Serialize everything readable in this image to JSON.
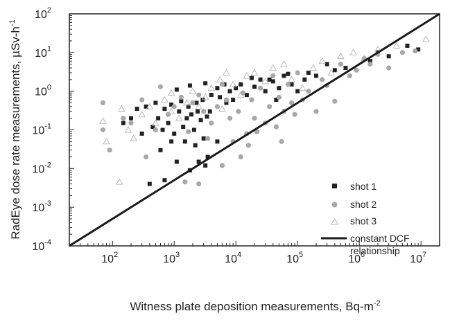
{
  "chart_data": {
    "type": "scatter",
    "xlabel": "Witness plate deposition measurements, Bq-m",
    "xlabel_sup": "-2",
    "ylabel": "RadEye dose rate measurements, µSv-h",
    "ylabel_sup": "-1",
    "x_scale": "log",
    "y_scale": "log",
    "xlim": [
      20,
      20000000
    ],
    "ylim": [
      0.0001,
      100
    ],
    "x_ticks": [
      {
        "base": "10",
        "exp": "2",
        "value": 100
      },
      {
        "base": "10",
        "exp": "3",
        "value": 1000
      },
      {
        "base": "10",
        "exp": "4",
        "value": 10000
      },
      {
        "base": "10",
        "exp": "5",
        "value": 100000
      },
      {
        "base": "10",
        "exp": "6",
        "value": 1000000
      },
      {
        "base": "10",
        "exp": "7",
        "value": 10000000
      }
    ],
    "y_ticks": [
      {
        "base": "10",
        "exp": "-4",
        "value": 0.0001
      },
      {
        "base": "10",
        "exp": "-3",
        "value": 0.001
      },
      {
        "base": "10",
        "exp": "-2",
        "value": 0.01
      },
      {
        "base": "10",
        "exp": "-1",
        "value": 0.1
      },
      {
        "base": "10",
        "exp": "0",
        "value": 1
      },
      {
        "base": "10",
        "exp": "1",
        "value": 10
      },
      {
        "base": "10",
        "exp": "2",
        "value": 100
      }
    ],
    "grid": false,
    "legend_position": "bottom-right",
    "series": [
      {
        "name": "shot 1",
        "marker": "square",
        "color": "#222222",
        "points": [
          [
            400,
            0.004
          ],
          [
            700,
            0.005
          ],
          [
            1100,
            0.015
          ],
          [
            1800,
            0.009
          ],
          [
            2500,
            0.015
          ],
          [
            3200,
            0.012
          ],
          [
            600,
            0.03
          ],
          [
            900,
            0.05
          ],
          [
            1500,
            0.05
          ],
          [
            2200,
            0.04
          ],
          [
            3500,
            0.02
          ],
          [
            5000,
            0.05
          ],
          [
            300,
            0.08
          ],
          [
            450,
            0.12
          ],
          [
            550,
            0.2
          ],
          [
            650,
            0.1
          ],
          [
            800,
            0.15
          ],
          [
            1000,
            0.08
          ],
          [
            1200,
            0.3
          ],
          [
            1400,
            0.12
          ],
          [
            1600,
            0.2
          ],
          [
            1900,
            0.25
          ],
          [
            2100,
            0.1
          ],
          [
            2400,
            0.3
          ],
          [
            2700,
            0.18
          ],
          [
            3000,
            0.06
          ],
          [
            3400,
            0.22
          ],
          [
            3800,
            0.3
          ],
          [
            200,
            0.2
          ],
          [
            250,
            0.35
          ],
          [
            350,
            0.4
          ],
          [
            500,
            0.5
          ],
          [
            700,
            0.35
          ],
          [
            900,
            0.45
          ],
          [
            1300,
            0.55
          ],
          [
            1700,
            0.4
          ],
          [
            2300,
            0.5
          ],
          [
            2900,
            0.6
          ],
          [
            4000,
            0.8
          ],
          [
            5500,
            0.7
          ],
          [
            7000,
            0.5
          ],
          [
            9000,
            0.6
          ],
          [
            5000,
            1.2
          ],
          [
            8000,
            1.0
          ],
          [
            12000,
            1.5
          ],
          [
            15000,
            0.8
          ],
          [
            20000,
            1.3
          ],
          [
            25000,
            2.0
          ],
          [
            30000,
            1.0
          ],
          [
            40000,
            1.8
          ],
          [
            50000,
            1.2
          ],
          [
            60000,
            2.5
          ],
          [
            80000,
            1.5
          ],
          [
            100000,
            1.0
          ],
          [
            130000,
            2.0
          ],
          [
            150000,
            3.0
          ],
          [
            200000,
            2.5
          ],
          [
            300000,
            5.0
          ],
          [
            400000,
            3.5
          ],
          [
            600000,
            4.0
          ],
          [
            1500000,
            6.0
          ],
          [
            2000000,
            10.0
          ],
          [
            3000000,
            8.0
          ],
          [
            6000000,
            15.0
          ],
          [
            9000000,
            12.0
          ],
          [
            150,
            0.15
          ],
          [
            1100,
            1.1
          ],
          [
            1800,
            1.4
          ],
          [
            3200,
            1.6
          ],
          [
            6500,
            1.5
          ],
          [
            10000,
            1.2
          ],
          [
            18000,
            2.2
          ],
          [
            35000,
            2.0
          ],
          [
            45000,
            0.6
          ],
          [
            70000,
            2.8
          ]
        ]
      },
      {
        "name": "shot 2",
        "marker": "circle",
        "color": "#a8a8a8",
        "points": [
          [
            70,
            0.5
          ],
          [
            70,
            0.1
          ],
          [
            90,
            0.03
          ],
          [
            150,
            0.2
          ],
          [
            200,
            0.15
          ],
          [
            300,
            0.6
          ],
          [
            350,
            0.02
          ],
          [
            500,
            0.1
          ],
          [
            600,
            1.3
          ],
          [
            800,
            0.25
          ],
          [
            1000,
            0.4
          ],
          [
            1300,
            0.7
          ],
          [
            1700,
            0.09
          ],
          [
            2000,
            0.5
          ],
          [
            2500,
            0.8
          ],
          [
            3000,
            0.3
          ],
          [
            4000,
            0.15
          ],
          [
            5000,
            0.4
          ],
          [
            6000,
            1.5
          ],
          [
            7000,
            0.6
          ],
          [
            8000,
            0.2
          ],
          [
            9000,
            0.05
          ],
          [
            11000,
            0.3
          ],
          [
            13000,
            0.9
          ],
          [
            15000,
            0.08
          ],
          [
            18000,
            0.6
          ],
          [
            20000,
            0.2
          ],
          [
            25000,
            1.2
          ],
          [
            30000,
            0.15
          ],
          [
            35000,
            0.4
          ],
          [
            40000,
            2.5
          ],
          [
            45000,
            0.12
          ],
          [
            50000,
            0.7
          ],
          [
            60000,
            0.3
          ],
          [
            70000,
            1.5
          ],
          [
            80000,
            0.5
          ],
          [
            90000,
            0.25
          ],
          [
            100000,
            3.0
          ],
          [
            120000,
            0.6
          ],
          [
            150000,
            1.0
          ],
          [
            200000,
            0.3
          ],
          [
            250000,
            2.0
          ],
          [
            300000,
            1.4
          ],
          [
            400000,
            0.55
          ],
          [
            500000,
            5.0
          ],
          [
            700000,
            2.5
          ],
          [
            900000,
            3.5
          ],
          [
            1200000,
            7.0
          ],
          [
            1500000,
            5.0
          ],
          [
            2000000,
            9.0
          ],
          [
            3000000,
            4.0
          ],
          [
            5000000,
            10.0
          ],
          [
            8000000,
            11.0
          ],
          [
            1500,
            0.0045
          ],
          [
            2500,
            0.004
          ],
          [
            12000,
            0.02
          ],
          [
            22000,
            0.09
          ],
          [
            55000,
            0.05
          ],
          [
            6000,
            0.012
          ],
          [
            3500,
            0.06
          ],
          [
            16000,
            0.04
          ]
        ]
      },
      {
        "name": "shot 3",
        "marker": "triangle",
        "color": "#b4b4b4",
        "points": [
          [
            70,
            0.17
          ],
          [
            80,
            0.05
          ],
          [
            130,
            0.0045
          ],
          [
            140,
            0.35
          ],
          [
            180,
            0.1
          ],
          [
            220,
            0.06
          ],
          [
            300,
            0.25
          ],
          [
            400,
            0.4
          ],
          [
            500,
            0.15
          ],
          [
            700,
            0.6
          ],
          [
            900,
            0.3
          ],
          [
            1200,
            0.2
          ],
          [
            1600,
            0.5
          ],
          [
            2000,
            1.0
          ],
          [
            2500,
            0.4
          ],
          [
            3200,
            0.7
          ],
          [
            4000,
            1.2
          ],
          [
            5500,
            2.0
          ],
          [
            7000,
            3.0
          ],
          [
            9000,
            1.5
          ],
          [
            12000,
            0.8
          ],
          [
            15000,
            2.5
          ],
          [
            20000,
            3.0
          ],
          [
            30000,
            1.8
          ],
          [
            40000,
            4.0
          ],
          [
            60000,
            5.0
          ],
          [
            80000,
            2.0
          ],
          [
            120000,
            1.2
          ],
          [
            180000,
            4.0
          ],
          [
            250000,
            6.0
          ],
          [
            350000,
            3.0
          ],
          [
            500000,
            8.0
          ],
          [
            800000,
            10.0
          ],
          [
            1200000,
            7.0
          ],
          [
            2000000,
            12.0
          ],
          [
            4000000,
            15.0
          ],
          [
            12000000,
            22.0
          ],
          [
            6000,
            0.35
          ],
          [
            900,
            0.9
          ]
        ]
      }
    ],
    "reference_line": {
      "name": "constant DCF relationship",
      "name_line1": "constant DCF",
      "name_line2": "relationship",
      "from": [
        20,
        0.0001
      ],
      "to": [
        20000000,
        100
      ]
    }
  }
}
